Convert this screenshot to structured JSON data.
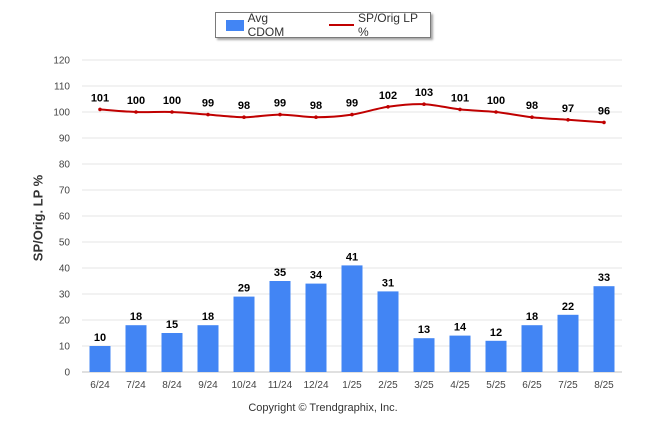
{
  "chart_data": {
    "type": "bar",
    "categories": [
      "6/24",
      "7/24",
      "8/24",
      "9/24",
      "10/24",
      "11/24",
      "12/24",
      "1/25",
      "2/25",
      "3/25",
      "4/25",
      "5/25",
      "6/25",
      "7/25",
      "8/25"
    ],
    "series": [
      {
        "name": "Avg CDOM",
        "type": "bar",
        "color": "#4285f4",
        "values": [
          10,
          18,
          15,
          18,
          29,
          35,
          34,
          41,
          31,
          13,
          14,
          12,
          18,
          22,
          33
        ]
      },
      {
        "name": "SP/Orig LP %",
        "type": "line",
        "color": "#c00000",
        "values": [
          101,
          100,
          100,
          99,
          98,
          99,
          98,
          99,
          102,
          103,
          101,
          100,
          98,
          97,
          96
        ]
      }
    ],
    "ylabel": "SP/Orig. LP %",
    "xlabel": "",
    "ylim": [
      0,
      120
    ],
    "yticks": [
      0,
      10,
      20,
      30,
      40,
      50,
      60,
      70,
      80,
      90,
      100,
      110,
      120
    ],
    "grid": true,
    "legend_position": "top-center",
    "data_labels": true
  },
  "credit": "Copyright © Trendgraphix, Inc."
}
